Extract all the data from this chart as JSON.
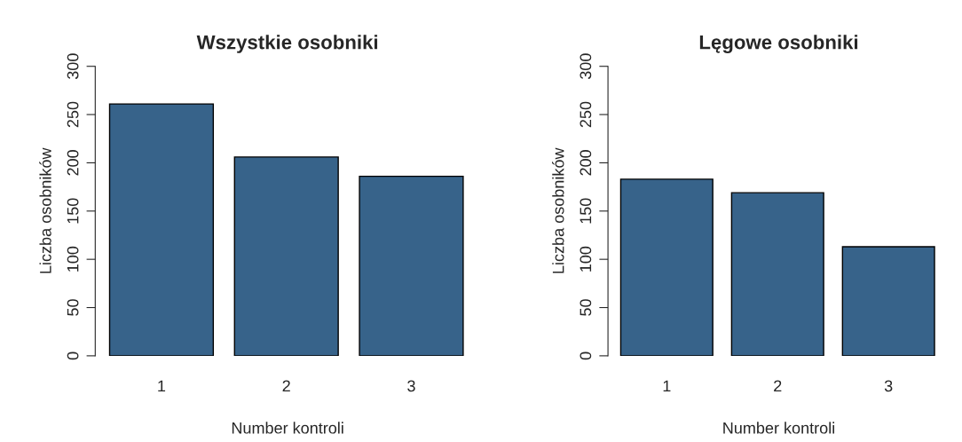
{
  "chart_data": [
    {
      "type": "bar",
      "title": "Wszystkie osobniki",
      "xlabel": "Number kontroli",
      "ylabel": "Liczba osobników",
      "categories": [
        "1",
        "2",
        "3"
      ],
      "values": [
        261,
        206,
        186
      ],
      "color": "#37638a",
      "ylim": [
        0,
        300
      ],
      "yticks": [
        0,
        50,
        100,
        150,
        200,
        250,
        300
      ],
      "grid": false
    },
    {
      "type": "bar",
      "title": "Lęgowe osobniki",
      "xlabel": "Number kontroli",
      "ylabel": "Liczba osobników",
      "categories": [
        "1",
        "2",
        "3"
      ],
      "values": [
        183,
        169,
        113
      ],
      "color": "#37638a",
      "ylim": [
        0,
        300
      ],
      "yticks": [
        0,
        50,
        100,
        150,
        200,
        250,
        300
      ],
      "grid": false
    }
  ]
}
